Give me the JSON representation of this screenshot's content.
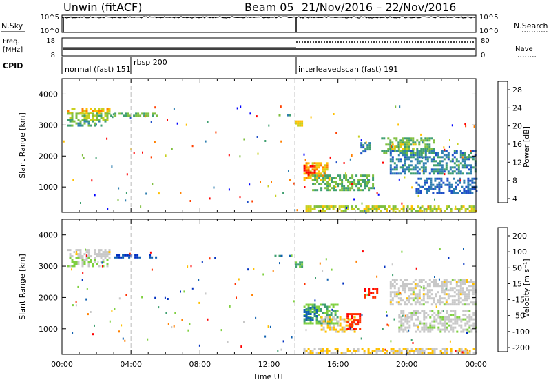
{
  "header": {
    "station": "Unwin (fitACF)",
    "beam": "Beam 05",
    "dates": "21/Nov/2016 – 22/Nov/2016"
  },
  "panels": {
    "nsky_label": "N.Sky",
    "nsearch_label": "N.Search",
    "nsky_ticks": [
      "10^5",
      "10^0"
    ],
    "nsearch_ticks": [
      "10^5",
      "10^0"
    ],
    "freq_label": "Freq.",
    "freq_unit": "[MHz]",
    "freq_ticks": [
      "18",
      "8"
    ],
    "nave_label": "Nave",
    "nave_ticks": [
      "80",
      "0"
    ],
    "cpid_label": "CPID",
    "cpid_modes": [
      {
        "name": "normal (fast) 151",
        "start": 0
      },
      {
        "name": "rbsp 200",
        "start": 4
      },
      {
        "name": "interleavedscan (fast) 191",
        "start": 13.5
      }
    ]
  },
  "colorbars": {
    "power": {
      "label": "Power [dB]",
      "ticks": [
        "28",
        "24",
        "20",
        "16",
        "12",
        "8",
        "4"
      ],
      "colors": [
        "#0000ff",
        "#1f4fc8",
        "#2f7fb0",
        "#3f9f70",
        "#7fbf3f",
        "#c8d020",
        "#ffc000",
        "#ff8000",
        "#ff4000",
        "#ff0000"
      ]
    },
    "velocity": {
      "label": "Velocity [m s⁻¹]",
      "ticks": [
        "200",
        "100",
        "50",
        "15",
        "-15",
        "-50",
        "-100",
        "-200"
      ],
      "colors": [
        "#0030c0",
        "#1060b0",
        "#3f9f70",
        "#7fd040",
        "#c8c8c8",
        "#ffc000",
        "#ff8000",
        "#ff3000",
        "#ff0000"
      ]
    }
  },
  "chart_data": [
    {
      "type": "heatmap",
      "name": "power",
      "ylabel": "Slant Range [km]",
      "xlim": [
        0,
        24
      ],
      "ylim": [
        180,
        4500
      ],
      "yticks": [
        "1000",
        "2000",
        "3000",
        "4000"
      ],
      "colorbar": "Power [dB]",
      "clim": [
        0,
        30
      ],
      "regions": [
        {
          "t0": 0.3,
          "t1": 2.8,
          "r0": 3400,
          "r1": 3550,
          "v": 20
        },
        {
          "t0": 0.3,
          "t1": 2.8,
          "r0": 3150,
          "r1": 3400,
          "v": 14
        },
        {
          "t0": 0.3,
          "t1": 2.5,
          "r0": 2950,
          "r1": 3150,
          "v": 10
        },
        {
          "t0": 2.8,
          "t1": 5.5,
          "r0": 3300,
          "r1": 3400,
          "v": 12
        },
        {
          "t0": 12.2,
          "t1": 13.2,
          "r0": 3300,
          "r1": 3350,
          "v": 10
        },
        {
          "t0": 13.5,
          "t1": 13.9,
          "r0": 3000,
          "r1": 3150,
          "v": 18
        },
        {
          "t0": 14.0,
          "t1": 15.5,
          "r0": 1200,
          "r1": 1800,
          "v": 20
        },
        {
          "t0": 14.0,
          "t1": 14.7,
          "r0": 1400,
          "r1": 1700,
          "v": 27
        },
        {
          "t0": 14.5,
          "t1": 18.0,
          "r0": 900,
          "r1": 1400,
          "v": 12
        },
        {
          "t0": 17.3,
          "t1": 17.8,
          "r0": 2100,
          "r1": 2450,
          "v": 8
        },
        {
          "t0": 18.5,
          "t1": 21.5,
          "r0": 2100,
          "r1": 2600,
          "v": 12
        },
        {
          "t0": 19.0,
          "t1": 20.5,
          "r0": 2200,
          "r1": 2400,
          "v": 17
        },
        {
          "t0": 19.0,
          "t1": 24.0,
          "r0": 1400,
          "r1": 2200,
          "v": 8
        },
        {
          "t0": 20.5,
          "t1": 24.0,
          "r0": 800,
          "r1": 1300,
          "v": 6
        },
        {
          "t0": 14.0,
          "t1": 24.0,
          "r0": 250,
          "r1": 400,
          "v": 16
        }
      ]
    },
    {
      "type": "heatmap",
      "name": "velocity",
      "ylabel": "Slant Range [km]",
      "xlabel": "Time UT",
      "xlim": [
        0,
        24
      ],
      "ylim": [
        180,
        4500
      ],
      "yticks": [
        "1000",
        "2000",
        "3000",
        "4000"
      ],
      "xticks": [
        "00:00",
        "04:00",
        "08:00",
        "12:00",
        "16:00",
        "20:00",
        "00:00"
      ],
      "colorbar": "Velocity [m s⁻¹]",
      "clim": [
        -250,
        250
      ],
      "regions": [
        {
          "t0": 0.3,
          "t1": 2.8,
          "r0": 3300,
          "r1": 3550,
          "v": 0
        },
        {
          "t0": 0.3,
          "t1": 2.8,
          "r0": 3000,
          "r1": 3300,
          "v": -30
        },
        {
          "t0": 3.0,
          "t1": 5.5,
          "r0": 3300,
          "r1": 3380,
          "v": -200
        },
        {
          "t0": 12.2,
          "t1": 13.2,
          "r0": 3300,
          "r1": 3360,
          "v": -150
        },
        {
          "t0": 13.5,
          "t1": 13.9,
          "r0": 3000,
          "r1": 3150,
          "v": -100
        },
        {
          "t0": 14.0,
          "t1": 16.0,
          "r0": 1200,
          "r1": 1800,
          "v": -80
        },
        {
          "t0": 14.0,
          "t1": 14.8,
          "r0": 1300,
          "r1": 1700,
          "v": -150
        },
        {
          "t0": 15.0,
          "t1": 17.0,
          "r0": 900,
          "r1": 1400,
          "v": 30
        },
        {
          "t0": 16.5,
          "t1": 17.3,
          "r0": 1000,
          "r1": 1500,
          "v": 180
        },
        {
          "t0": 17.5,
          "t1": 18.3,
          "r0": 2000,
          "r1": 2300,
          "v": 200
        },
        {
          "t0": 19.0,
          "t1": 24.0,
          "r0": 1800,
          "r1": 2600,
          "v": 0
        },
        {
          "t0": 19.5,
          "t1": 24.0,
          "r0": 900,
          "r1": 1600,
          "v": -5
        },
        {
          "t0": 14.0,
          "t1": 24.0,
          "r0": 250,
          "r1": 400,
          "v": 30
        }
      ]
    }
  ]
}
